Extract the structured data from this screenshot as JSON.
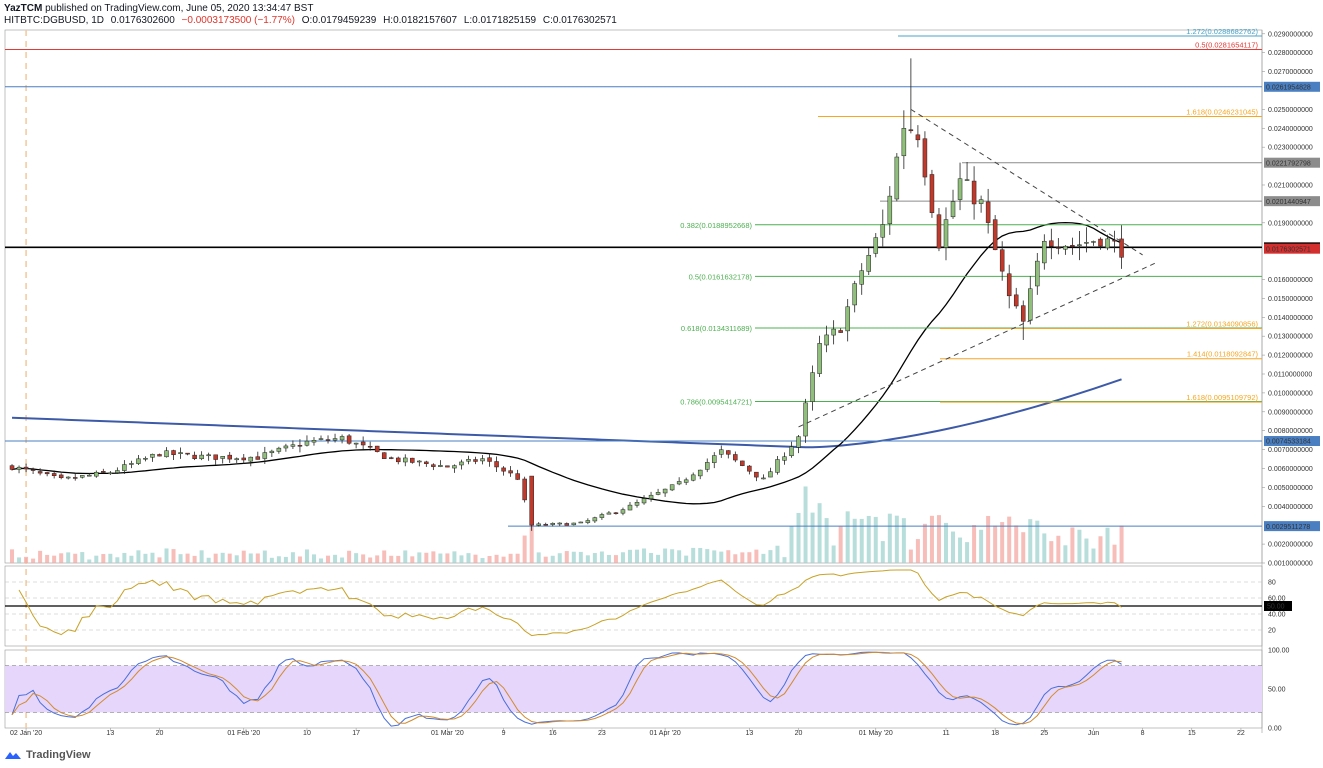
{
  "header": {
    "author": "YazTCM",
    "published_text": "published on TradingView.com, June 05, 2020 13:34:47 BST",
    "symbol": "HITBTC:DGBUSD, 1D",
    "last": "0.0176302600",
    "change": "−0.0003173500 (−1.77%)",
    "open": "O:0.0179459239",
    "high": "H:0.0182157607",
    "low": "L:0.0171825159",
    "close": "C:0.0176302571"
  },
  "footer": {
    "brand": "TradingView",
    "icon": "tradingview-logo-icon"
  },
  "colors": {
    "up": "#8fbf7a",
    "down": "#c0392b",
    "sma_short": "#000000",
    "sma_long": "#3d5aa8",
    "rsi": "#c9a227",
    "stoch_k": "#4a6fd8",
    "stoch_d": "#d28a2e",
    "stoch_band": "#e6d6fb",
    "fib_left": "#4caf50",
    "fib_right": "#f5a623",
    "resistance_red": "#e53935",
    "level_blue": "#4a7fc1",
    "level_gray": "#8c8c8c"
  },
  "chart_data": {
    "type": "candlestick",
    "x_tick_labels": [
      {
        "date": "2020-01-01",
        "label": "02 Jan '20"
      },
      {
        "date": "2020-01-13",
        "label": "13"
      },
      {
        "date": "2020-01-20",
        "label": "20"
      },
      {
        "date": "2020-02-01",
        "label": "01 Feb '20"
      },
      {
        "date": "2020-02-10",
        "label": "10"
      },
      {
        "date": "2020-02-17",
        "label": "17"
      },
      {
        "date": "2020-03-01",
        "label": "01 Mar '20"
      },
      {
        "date": "2020-03-09",
        "label": "9"
      },
      {
        "date": "2020-03-16",
        "label": "16"
      },
      {
        "date": "2020-03-23",
        "label": "23"
      },
      {
        "date": "2020-04-01",
        "label": "01 Apr '20"
      },
      {
        "date": "2020-04-13",
        "label": "13"
      },
      {
        "date": "2020-04-20",
        "label": "20"
      },
      {
        "date": "2020-05-01",
        "label": "01 May '20"
      },
      {
        "date": "2020-05-11",
        "label": "11"
      },
      {
        "date": "2020-05-18",
        "label": "18"
      },
      {
        "date": "2020-05-25",
        "label": "25"
      },
      {
        "date": "2020-06-01",
        "label": "Jun"
      },
      {
        "date": "2020-06-08",
        "label": "8"
      },
      {
        "date": "2020-06-15",
        "label": "15"
      },
      {
        "date": "2020-06-22",
        "label": "22"
      }
    ],
    "price_axis_labels": [
      "0.0290000000",
      "0.0280000000",
      "0.0270000000",
      "0.0250000000",
      "0.0240000000",
      "0.0230000000",
      "0.0210000000",
      "0.0190000000",
      "0.0160000000",
      "0.0150000000",
      "0.0140000000",
      "0.0130000000",
      "0.0120000000",
      "0.0110000000",
      "0.0100000000",
      "0.0090000000",
      "0.0080000000",
      "0.0070000000",
      "0.0060000000",
      "0.0050000000",
      "0.0040000000",
      "0.0020000000",
      "0.0010000000"
    ],
    "price_range": [
      0.001,
      0.0292
    ],
    "date_range": [
      "2019-12-29",
      "2020-06-25"
    ],
    "levels": [
      {
        "price": 0.0281654117,
        "label": "0.5(0.0281654117)",
        "color": "resistance_red",
        "side": "right-text"
      },
      {
        "price": 0.0261954828,
        "label": "0.0261954828",
        "color": "level_blue",
        "side": "badge"
      },
      {
        "price": 0.0246231045,
        "label": "1.618(0.0246231045)",
        "color": "fib_right",
        "side": "right-text"
      },
      {
        "price": 0.0221792798,
        "label": "0.0221792798",
        "color": "level_gray",
        "side": "badge"
      },
      {
        "price": 0.0201440947,
        "label": "0.0201440947",
        "color": "level_gray",
        "side": "badge"
      },
      {
        "price": 0.0188952668,
        "label": "0.382(0.0188952668)",
        "color": "fib_left",
        "side": "left-text"
      },
      {
        "price": 0.0177,
        "label": "0.0177000000",
        "color": "sma_short",
        "side": "badge"
      },
      {
        "price": 0.0161632178,
        "label": "0.5(0.0161632178)",
        "color": "fib_left",
        "side": "left-text"
      },
      {
        "price": 0.0134311689,
        "label": "0.618(0.0134311689)",
        "color": "fib_left",
        "side": "left-text"
      },
      {
        "price": 0.0134090856,
        "label": "1.272(0.0134090856)",
        "color": "fib_right",
        "side": "right-text"
      },
      {
        "price": 0.0118092847,
        "label": "1.414(0.0118092847)",
        "color": "fib_right",
        "side": "right-text"
      },
      {
        "price": 0.0095414721,
        "label": "0.786(0.0095414721)",
        "color": "fib_left",
        "side": "left-text"
      },
      {
        "price": 0.0095109792,
        "label": "1.618(0.0095109792)",
        "color": "fib_right",
        "side": "right-text"
      },
      {
        "price": 0.0074533184,
        "label": "0.0074533184",
        "color": "level_blue",
        "side": "badge"
      },
      {
        "price": 0.0029511278,
        "label": "0.0029511278",
        "color": "level_blue",
        "side": "badge"
      }
    ],
    "last_price_badge": {
      "price": 0.0176302571,
      "label": "0.0176302571"
    },
    "top_partial_label": "1.272(0.0288682762)",
    "anchors": [
      {
        "date": "2019-12-30",
        "close": 0.0061
      },
      {
        "date": "2020-01-06",
        "close": 0.0054
      },
      {
        "date": "2020-01-13",
        "close": 0.0058
      },
      {
        "date": "2020-01-20",
        "close": 0.0068
      },
      {
        "date": "2020-01-27",
        "close": 0.0066
      },
      {
        "date": "2020-02-03",
        "close": 0.0066
      },
      {
        "date": "2020-02-10",
        "close": 0.0074
      },
      {
        "date": "2020-02-15",
        "close": 0.0076
      },
      {
        "date": "2020-02-22",
        "close": 0.0065
      },
      {
        "date": "2020-03-01",
        "close": 0.0061
      },
      {
        "date": "2020-03-06",
        "close": 0.0065
      },
      {
        "date": "2020-03-11",
        "close": 0.0055
      },
      {
        "date": "2020-03-13",
        "close": 0.003
      },
      {
        "date": "2020-03-20",
        "close": 0.0031
      },
      {
        "date": "2020-03-27",
        "close": 0.004
      },
      {
        "date": "2020-04-03",
        "close": 0.0052
      },
      {
        "date": "2020-04-09",
        "close": 0.0069
      },
      {
        "date": "2020-04-15",
        "close": 0.0054
      },
      {
        "date": "2020-04-20",
        "close": 0.0077
      },
      {
        "date": "2020-04-23",
        "close": 0.0125
      },
      {
        "date": "2020-04-26",
        "close": 0.0135
      },
      {
        "date": "2020-04-29",
        "close": 0.0165
      },
      {
        "date": "2020-05-02",
        "close": 0.0188
      },
      {
        "date": "2020-05-05",
        "close": 0.0242
      },
      {
        "date": "2020-05-07",
        "close": 0.0238
      },
      {
        "date": "2020-05-10",
        "close": 0.018
      },
      {
        "date": "2020-05-13",
        "close": 0.0212
      },
      {
        "date": "2020-05-16",
        "close": 0.02
      },
      {
        "date": "2020-05-20",
        "close": 0.015
      },
      {
        "date": "2020-05-22",
        "close": 0.0137
      },
      {
        "date": "2020-05-25",
        "close": 0.0183
      },
      {
        "date": "2020-05-29",
        "close": 0.0178
      },
      {
        "date": "2020-06-02",
        "close": 0.0182
      },
      {
        "date": "2020-06-05",
        "close": 0.0176
      }
    ],
    "volume_range": [
      0,
      100
    ],
    "rsi_labels": [
      "80",
      "60.00",
      "50.00",
      "40.00",
      "20"
    ],
    "stoch_labels": [
      "100.00",
      "50.00",
      "0.00"
    ]
  }
}
